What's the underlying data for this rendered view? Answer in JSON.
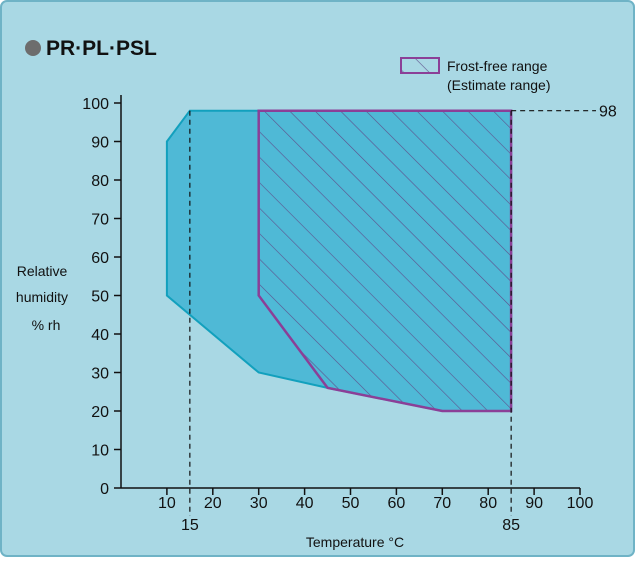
{
  "title": "PR·PL·PSL",
  "colors": {
    "background": "#a9d8e4",
    "panel_border": "#6fb3c6",
    "operating_fill": "#3fb4d3",
    "operating_stroke": "#12a0bd",
    "frost_stroke": "#8b3f97",
    "hatch": "#5e4f8c",
    "bullet": "#6d6d6d",
    "text": "#111111"
  },
  "chart_data": {
    "type": "area",
    "xlabel": "Temperature °C",
    "ylabel_lines": [
      "Relative",
      "humidity",
      "% rh"
    ],
    "xlim": [
      0,
      100
    ],
    "ylim": [
      0,
      100
    ],
    "x_ticks": [
      "10",
      "20",
      "30",
      "40",
      "50",
      "60",
      "70",
      "80",
      "90",
      "100"
    ],
    "y_ticks": [
      "0",
      "10",
      "20",
      "30",
      "40",
      "50",
      "60",
      "70",
      "80",
      "90",
      "100"
    ],
    "series": [
      {
        "points": [
          [
            10,
            50
          ],
          [
            10,
            90
          ],
          [
            15,
            98
          ],
          [
            85,
            98
          ],
          [
            85,
            20
          ],
          [
            70,
            20
          ],
          [
            45,
            26
          ],
          [
            30,
            30
          ],
          [
            10,
            50
          ]
        ]
      },
      {
        "name": "Frost-free range (Estimate range)",
        "points": [
          [
            30,
            98
          ],
          [
            85,
            98
          ],
          [
            85,
            20
          ],
          [
            70,
            20
          ],
          [
            45,
            26
          ],
          [
            30,
            50
          ],
          [
            30,
            98
          ]
        ]
      }
    ],
    "legend": {
      "position": "top-right",
      "lines": [
        "Frost-free range",
        "(Estimate range)"
      ]
    },
    "annotations": {
      "x_marks": [
        {
          "value": 15,
          "label": "15"
        },
        {
          "value": 85,
          "label": "85"
        }
      ],
      "y_marks": [
        {
          "value": 98,
          "label": "98"
        }
      ]
    }
  }
}
